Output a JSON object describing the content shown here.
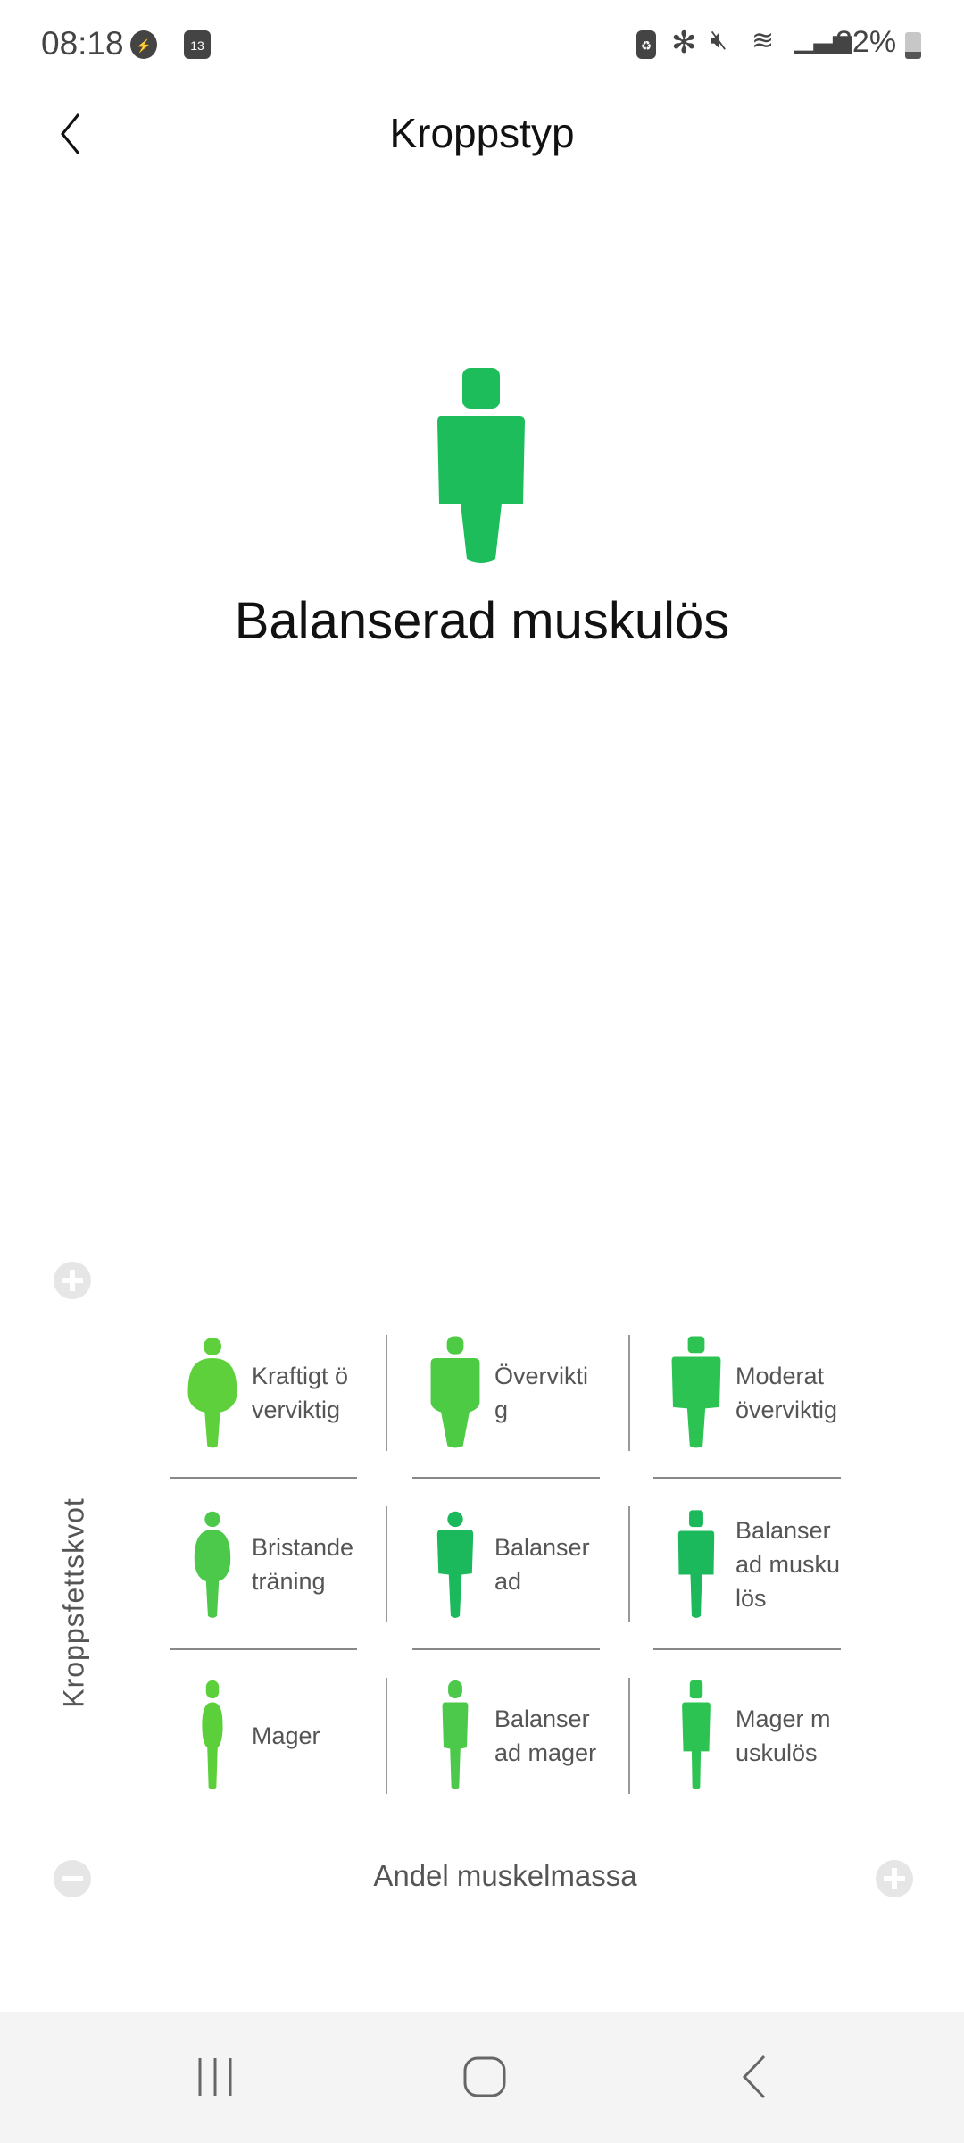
{
  "status_bar": {
    "time": "08:18",
    "calendar_day": "13",
    "battery": "22%",
    "icons": [
      "messenger-icon",
      "calendar-icon",
      "battery-saver-icon",
      "bluetooth-icon",
      "mute-icon",
      "wifi-icon",
      "signal-icon",
      "battery-icon"
    ]
  },
  "header": {
    "title": "Kroppstyp",
    "back_icon": "chevron-left-icon"
  },
  "result": {
    "name": "Balanserad muskulös",
    "color": "#1dbd5c"
  },
  "grid": {
    "y_axis_label": "Kroppsfettskvot",
    "x_axis_label": "Andel muskelmassa",
    "cells": [
      {
        "label": "Kraftigt överviktig",
        "type": "obese",
        "color": "#5dd03c"
      },
      {
        "label": "Överviktig",
        "type": "overweight",
        "color": "#4dcb45"
      },
      {
        "label": "Moderat överviktig",
        "type": "muscular-heavy",
        "color": "#2cc352"
      },
      {
        "label": "Bristande träning",
        "type": "untrained",
        "color": "#4cc94a"
      },
      {
        "label": "Balanserad",
        "type": "balanced",
        "color": "#1cb95c"
      },
      {
        "label": "Balanserad muskulös",
        "type": "balanced-muscular",
        "color": "#1cb95c"
      },
      {
        "label": "Mager",
        "type": "thin",
        "color": "#5cd03a"
      },
      {
        "label": "Balanserad mager",
        "type": "balanced-thin",
        "color": "#4cc94a"
      },
      {
        "label": "Mager muskulös",
        "type": "thin-muscular",
        "color": "#2cc352"
      }
    ]
  }
}
